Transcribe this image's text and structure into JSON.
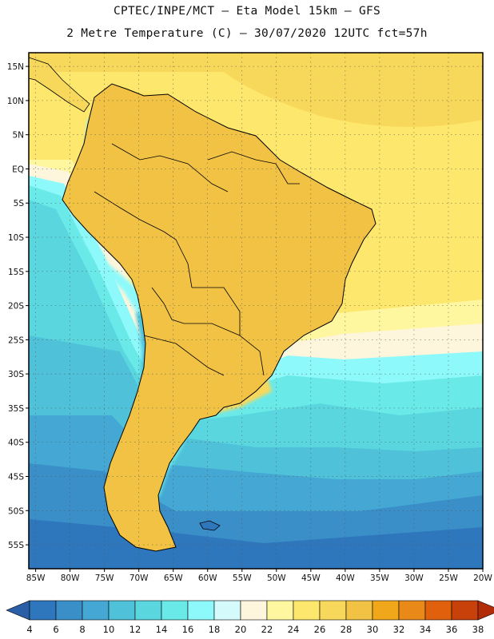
{
  "title": {
    "line1": "CPTEC/INPE/MCT –  Eta Model 15km – GFS",
    "line2": "2 Metre Temperature (C) – 30/07/2020 12UTC fct=57h"
  },
  "map": {
    "lat_labels": [
      "15N",
      "10N",
      "5N",
      "EQ",
      "5S",
      "10S",
      "15S",
      "20S",
      "25S",
      "30S",
      "35S",
      "40S",
      "45S",
      "50S",
      "55S"
    ],
    "lon_labels": [
      "85W",
      "80W",
      "75W",
      "70W",
      "65W",
      "60W",
      "55W",
      "50W",
      "45W",
      "40W",
      "35W",
      "30W",
      "25W",
      "20W"
    ],
    "lat_range": [
      17,
      -58.5
    ],
    "lon_range": [
      -86,
      -20
    ]
  },
  "colorbar": {
    "labels": [
      "4",
      "6",
      "8",
      "10",
      "12",
      "14",
      "16",
      "18",
      "20",
      "22",
      "24",
      "26",
      "28",
      "30",
      "32",
      "34",
      "36",
      "38"
    ],
    "colors": [
      "#2a5fa8",
      "#2f77bd",
      "#3a8fc9",
      "#45a8d4",
      "#4fc1d9",
      "#5ad6de",
      "#6ae9e9",
      "#8ef9fa",
      "#d4fafc",
      "#fdf5dc",
      "#fef7a0",
      "#fde76c",
      "#f8d85a",
      "#f1c243",
      "#f0a719",
      "#e98a18",
      "#e0600b",
      "#c8400a",
      "#b22c08"
    ]
  }
}
